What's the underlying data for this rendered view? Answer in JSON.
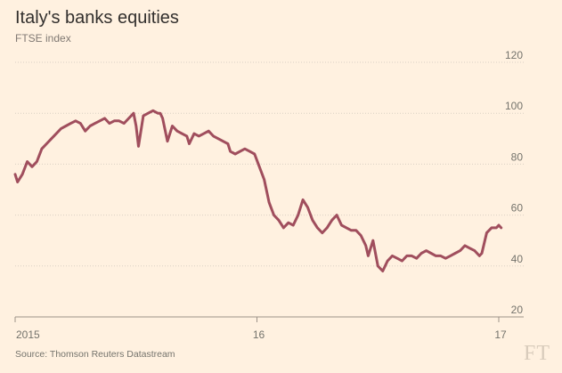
{
  "header": {
    "title": "Italy's banks equities",
    "subtitle": "FTSE index"
  },
  "footer": {
    "source": "Source: Thomson Reuters Datastream",
    "logo_text": "FT"
  },
  "colors": {
    "background": "#fff1e0",
    "line": "#a04e5d",
    "grid": "#d9cfc3",
    "axis": "#9c9288"
  },
  "chart_data": {
    "type": "line",
    "title": "Italy's banks equities",
    "subtitle": "FTSE index",
    "xlabel": "",
    "ylabel": "",
    "ylim": [
      20,
      120
    ],
    "yticks": [
      20,
      40,
      60,
      80,
      100,
      120
    ],
    "xlim": [
      2015.0,
      2017.0
    ],
    "xticks": [
      {
        "value": 2015.0,
        "label": "2015"
      },
      {
        "value": 2016.0,
        "label": "16"
      },
      {
        "value": 2017.0,
        "label": "17"
      }
    ],
    "grid": true,
    "series": [
      {
        "values": [
          [
            2015.0,
            76
          ],
          [
            2015.01,
            73
          ],
          [
            2015.03,
            76
          ],
          [
            2015.05,
            81
          ],
          [
            2015.07,
            79
          ],
          [
            2015.09,
            81
          ],
          [
            2015.11,
            86
          ],
          [
            2015.13,
            88
          ],
          [
            2015.15,
            90
          ],
          [
            2015.17,
            92
          ],
          [
            2015.19,
            94
          ],
          [
            2015.21,
            95
          ],
          [
            2015.23,
            96
          ],
          [
            2015.25,
            97
          ],
          [
            2015.27,
            96
          ],
          [
            2015.29,
            93
          ],
          [
            2015.31,
            95
          ],
          [
            2015.33,
            96
          ],
          [
            2015.35,
            97
          ],
          [
            2015.37,
            98
          ],
          [
            2015.39,
            96
          ],
          [
            2015.41,
            97
          ],
          [
            2015.43,
            97
          ],
          [
            2015.45,
            96
          ],
          [
            2015.47,
            98
          ],
          [
            2015.49,
            100
          ],
          [
            2015.5,
            95
          ],
          [
            2015.51,
            87
          ],
          [
            2015.53,
            99
          ],
          [
            2015.55,
            100
          ],
          [
            2015.57,
            101
          ],
          [
            2015.59,
            100
          ],
          [
            2015.6,
            100
          ],
          [
            2015.61,
            98
          ],
          [
            2015.63,
            89
          ],
          [
            2015.65,
            95
          ],
          [
            2015.67,
            93
          ],
          [
            2015.69,
            92
          ],
          [
            2015.71,
            91
          ],
          [
            2015.72,
            88
          ],
          [
            2015.74,
            92
          ],
          [
            2015.76,
            91
          ],
          [
            2015.78,
            92
          ],
          [
            2015.8,
            93
          ],
          [
            2015.82,
            91
          ],
          [
            2015.84,
            90
          ],
          [
            2015.86,
            89
          ],
          [
            2015.88,
            88
          ],
          [
            2015.89,
            85
          ],
          [
            2015.91,
            84
          ],
          [
            2015.93,
            85
          ],
          [
            2015.95,
            86
          ],
          [
            2015.97,
            85
          ],
          [
            2015.99,
            84
          ],
          [
            2016.01,
            79
          ],
          [
            2016.03,
            74
          ],
          [
            2016.05,
            65
          ],
          [
            2016.07,
            60
          ],
          [
            2016.09,
            58
          ],
          [
            2016.11,
            55
          ],
          [
            2016.13,
            57
          ],
          [
            2016.15,
            56
          ],
          [
            2016.17,
            60
          ],
          [
            2016.19,
            66
          ],
          [
            2016.21,
            63
          ],
          [
            2016.23,
            58
          ],
          [
            2016.25,
            55
          ],
          [
            2016.27,
            53
          ],
          [
            2016.29,
            55
          ],
          [
            2016.31,
            58
          ],
          [
            2016.33,
            60
          ],
          [
            2016.35,
            56
          ],
          [
            2016.37,
            55
          ],
          [
            2016.39,
            54
          ],
          [
            2016.41,
            54
          ],
          [
            2016.43,
            52
          ],
          [
            2016.45,
            48
          ],
          [
            2016.46,
            44
          ],
          [
            2016.48,
            50
          ],
          [
            2016.5,
            40
          ],
          [
            2016.52,
            38
          ],
          [
            2016.54,
            42
          ],
          [
            2016.56,
            44
          ],
          [
            2016.58,
            43
          ],
          [
            2016.6,
            42
          ],
          [
            2016.62,
            44
          ],
          [
            2016.64,
            44
          ],
          [
            2016.66,
            43
          ],
          [
            2016.68,
            45
          ],
          [
            2016.7,
            46
          ],
          [
            2016.72,
            45
          ],
          [
            2016.74,
            44
          ],
          [
            2016.76,
            44
          ],
          [
            2016.78,
            43
          ],
          [
            2016.8,
            44
          ],
          [
            2016.82,
            45
          ],
          [
            2016.84,
            46
          ],
          [
            2016.86,
            48
          ],
          [
            2016.88,
            47
          ],
          [
            2016.9,
            46
          ],
          [
            2016.92,
            44
          ],
          [
            2016.93,
            45
          ],
          [
            2016.95,
            53
          ],
          [
            2016.97,
            55
          ],
          [
            2016.99,
            55
          ],
          [
            2017.0,
            56
          ],
          [
            2017.01,
            55
          ]
        ]
      }
    ]
  }
}
